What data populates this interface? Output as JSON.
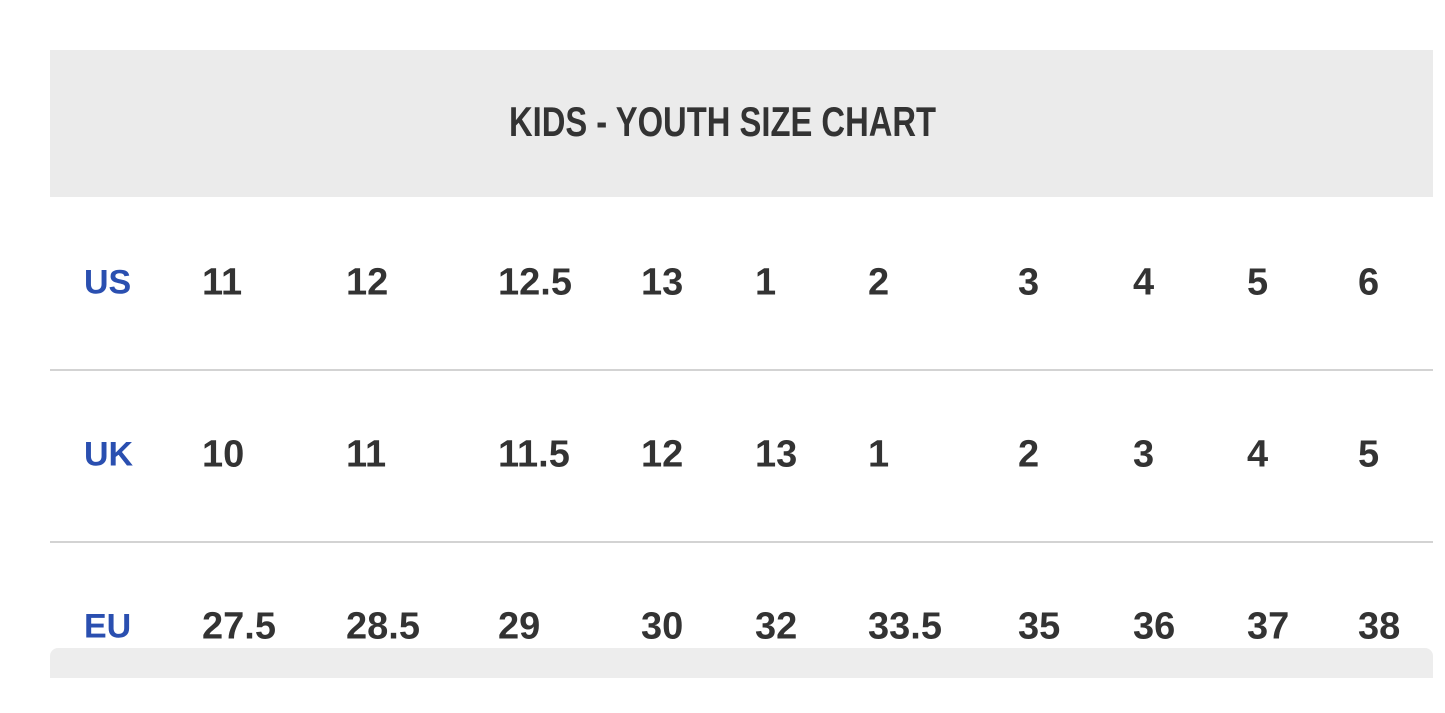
{
  "title": "KIDS - YOUTH SIZE CHART",
  "rows": [
    {
      "label": "US",
      "values": [
        "11",
        "12",
        "12.5",
        "13",
        "1",
        "2",
        "3",
        "4",
        "5",
        "6"
      ]
    },
    {
      "label": "UK",
      "values": [
        "10",
        "11",
        "11.5",
        "12",
        "13",
        "1",
        "2",
        "3",
        "4",
        "5"
      ]
    },
    {
      "label": "EU",
      "values": [
        "27.5",
        "28.5",
        "29",
        "30",
        "32",
        "33.5",
        "35",
        "36",
        "37",
        "38"
      ]
    }
  ],
  "colors": {
    "label": "#2a4fb0",
    "text": "#333333",
    "header_bg": "#ebebeb",
    "divider": "#d3d3d3"
  }
}
